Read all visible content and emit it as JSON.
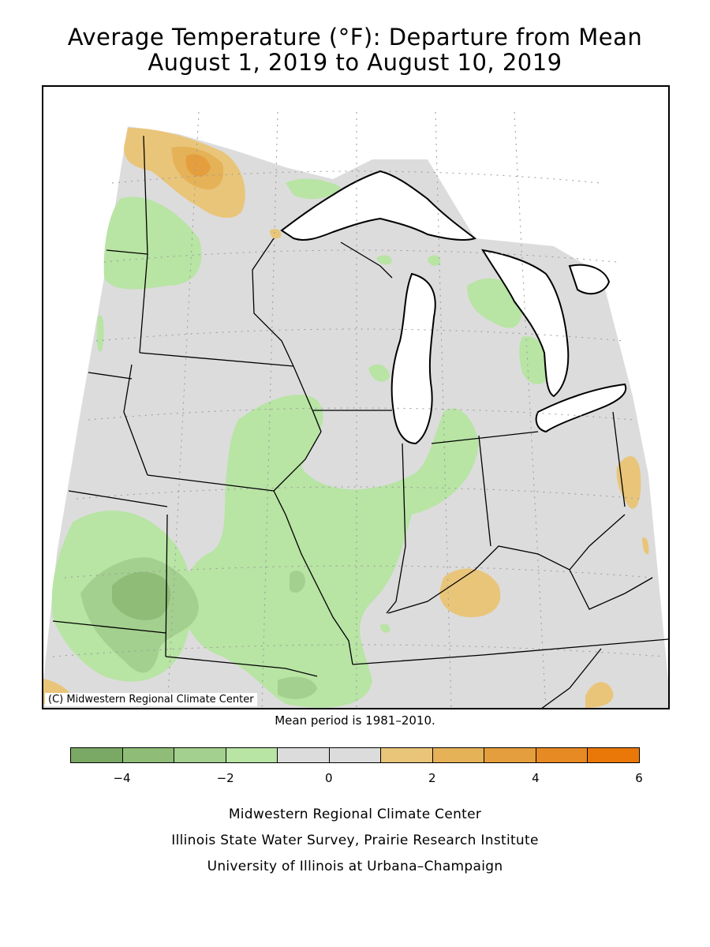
{
  "title": {
    "line1": "Average Temperature (°F): Departure from Mean",
    "line2": "August 1, 2019 to August 10, 2019"
  },
  "map": {
    "copyright": "(C) Midwestern Regional Climate Center",
    "background_color": "#dcdcdc",
    "water_color": "#ffffff"
  },
  "mean_period": "Mean period is 1981–2010.",
  "legend": {
    "bins": [
      {
        "from": -5,
        "to": -4,
        "color": "#7aa865"
      },
      {
        "from": -4,
        "to": -3,
        "color": "#8fbd78"
      },
      {
        "from": -3,
        "to": -2,
        "color": "#a4d08f"
      },
      {
        "from": -2,
        "to": -1,
        "color": "#b8e4a4"
      },
      {
        "from": -1,
        "to": 0,
        "color": "#dcdcdc"
      },
      {
        "from": 0,
        "to": 1,
        "color": "#dcdcdc"
      },
      {
        "from": 1,
        "to": 2,
        "color": "#e9c57a"
      },
      {
        "from": 2,
        "to": 3,
        "color": "#e6b257"
      },
      {
        "from": 3,
        "to": 4,
        "color": "#e59e3d"
      },
      {
        "from": 4,
        "to": 5,
        "color": "#e88a23"
      },
      {
        "from": 5,
        "to": 6,
        "color": "#ea7808"
      }
    ],
    "tick_labels": [
      "−4",
      "−2",
      "0",
      "2",
      "4",
      "6"
    ],
    "tick_values": [
      -4,
      -2,
      0,
      2,
      4,
      6
    ]
  },
  "credits": {
    "line1": "Midwestern Regional Climate Center",
    "line2": "Illinois State Water Survey, Prairie Research Institute",
    "line3": "University of Illinois at Urbana–Champaign"
  }
}
